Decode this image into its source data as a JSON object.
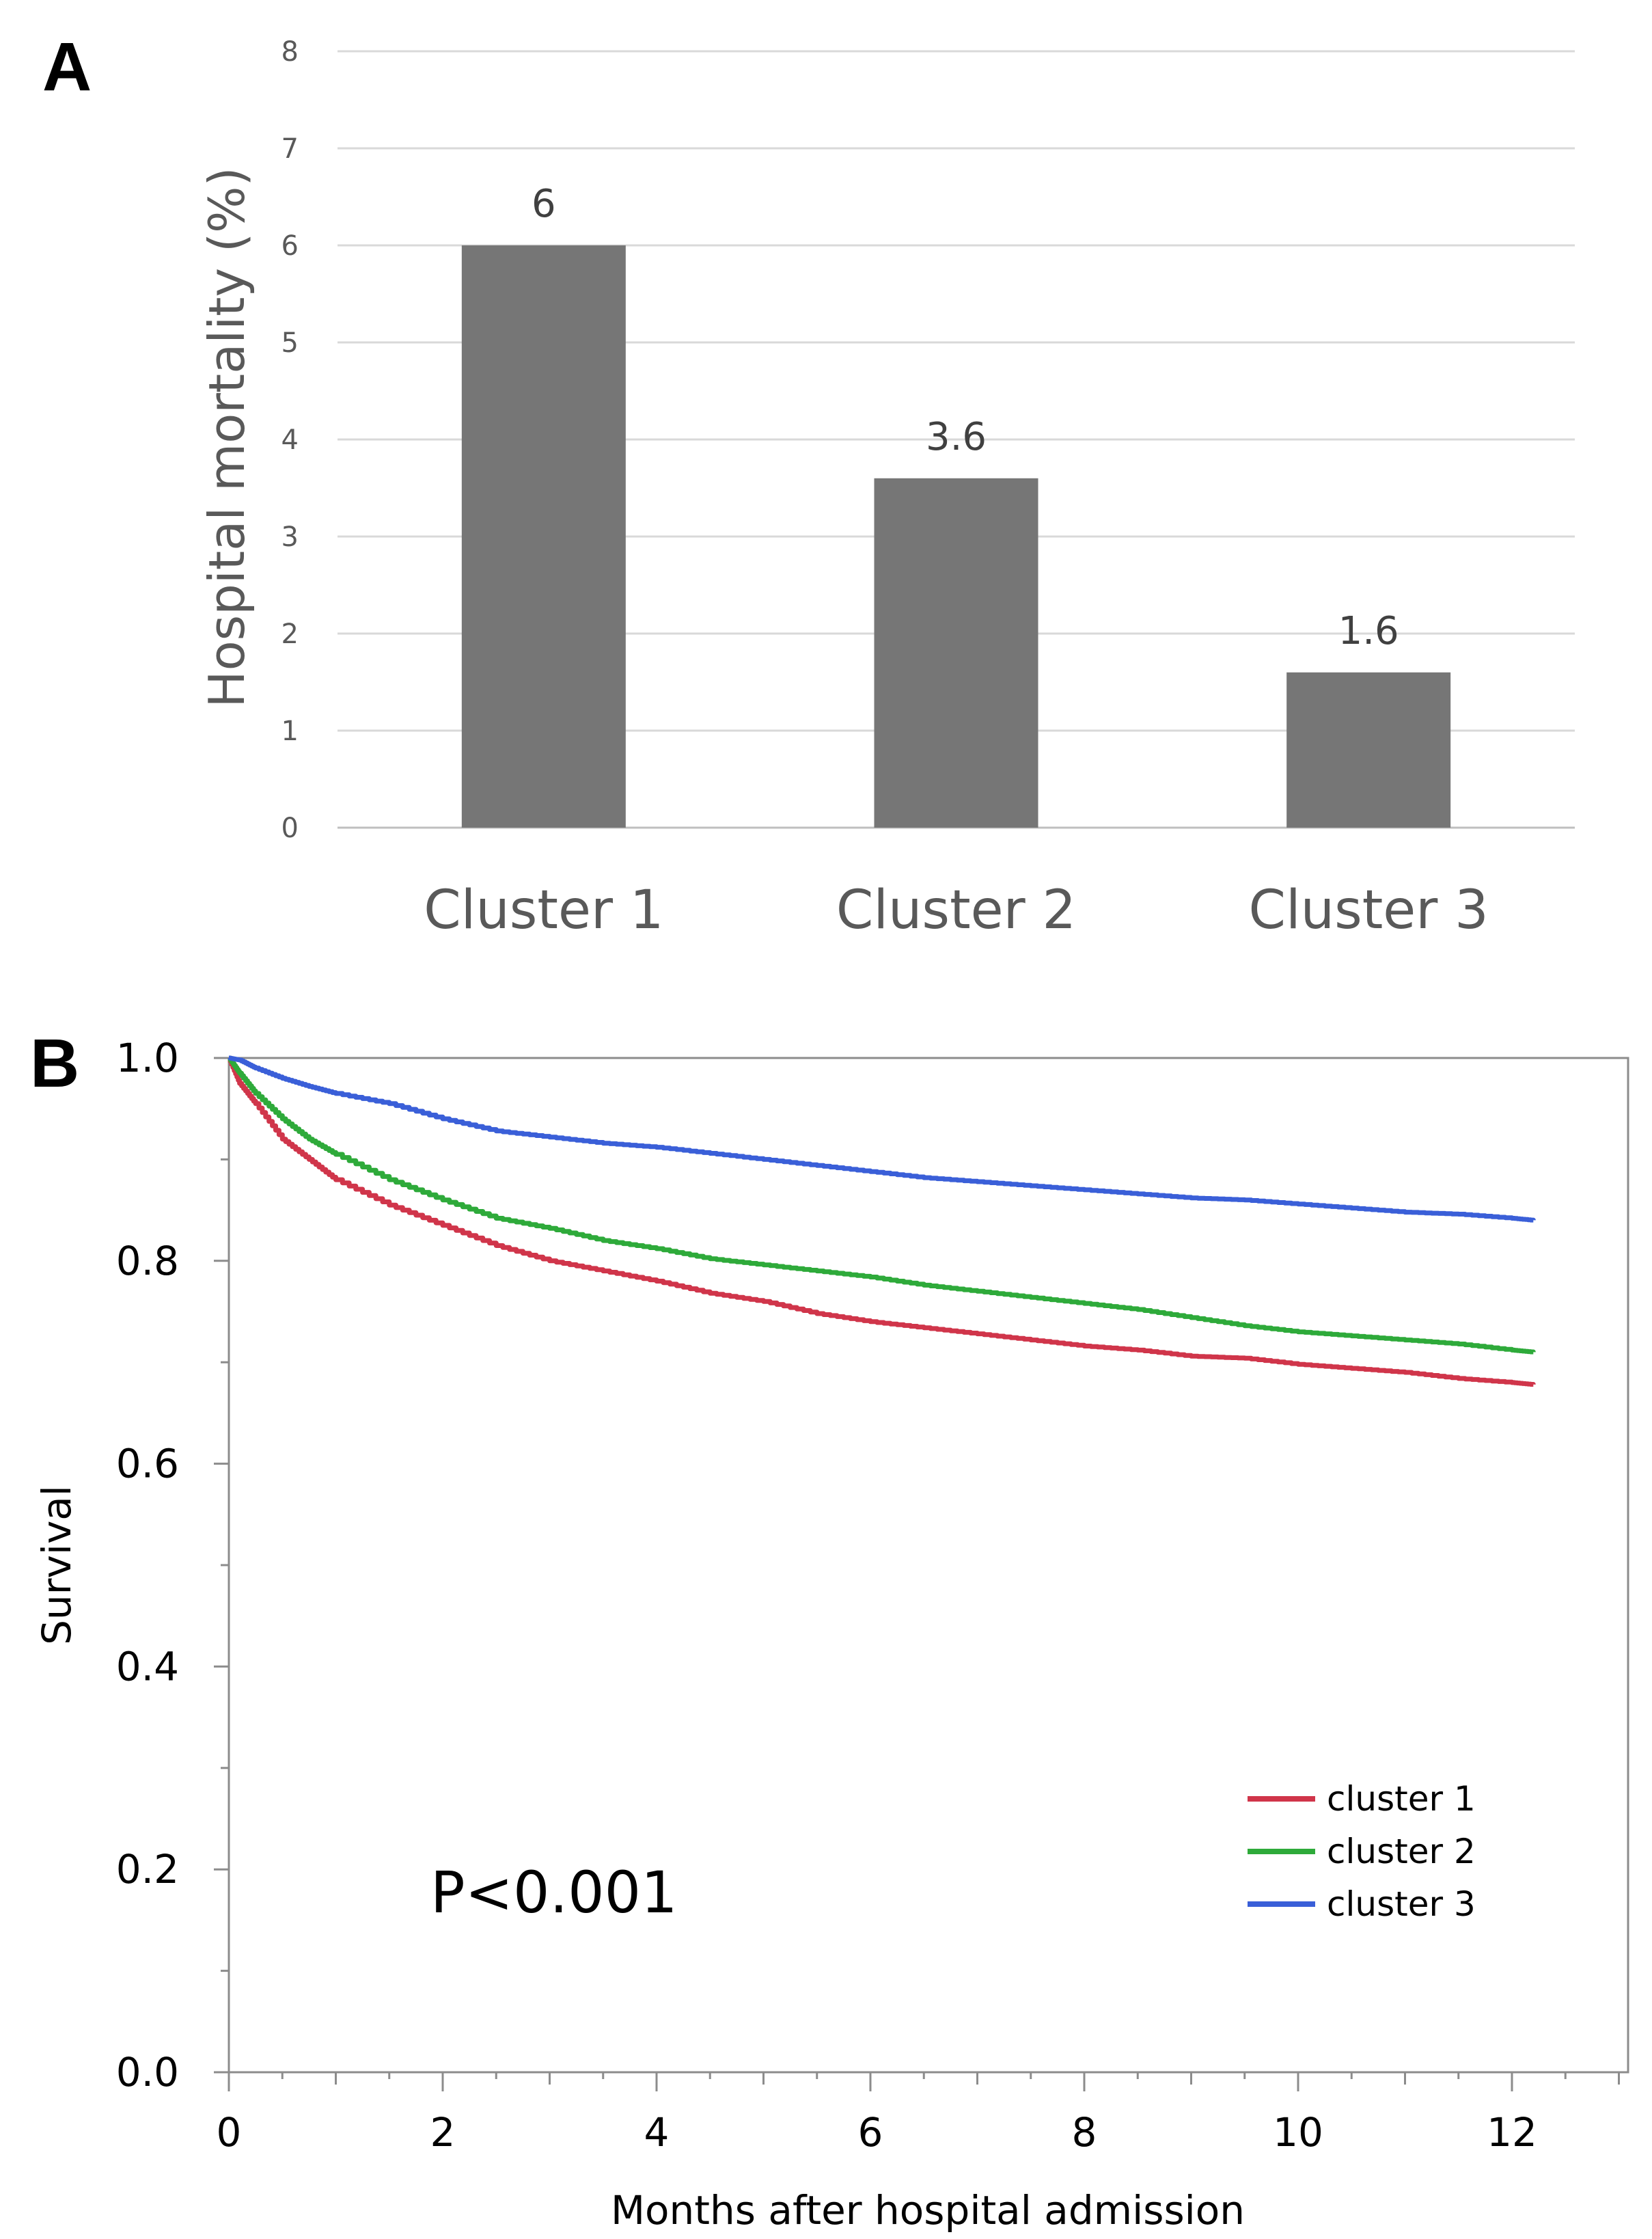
{
  "chart_data": [
    {
      "panel": "A",
      "type": "bar",
      "categories": [
        "Cluster 1",
        "Cluster 2",
        "Cluster 3"
      ],
      "values": [
        6,
        3.6,
        1.6
      ],
      "data_labels": [
        "6",
        "3.6",
        "1.6"
      ],
      "title": "",
      "xlabel": "",
      "ylabel": "Hospital mortality (%)",
      "ylim": [
        0,
        8
      ],
      "yticks": [
        0,
        1,
        2,
        3,
        4,
        5,
        6,
        7,
        8
      ],
      "grid": true,
      "bar_color": "#767676"
    },
    {
      "panel": "B",
      "type": "line",
      "title": "",
      "xlabel": "Months after hospital admission",
      "ylabel": "Survival",
      "xlim": [
        0,
        13
      ],
      "ylim": [
        0,
        1
      ],
      "xticks": [
        0,
        2,
        4,
        6,
        8,
        10,
        12
      ],
      "yticks": [
        "0.0",
        "0.2",
        "0.4",
        "0.6",
        "0.8",
        "1.0"
      ],
      "annotation": "P<0.001",
      "legend_position": "bottom-right",
      "series": [
        {
          "name": "cluster 1",
          "color": "#d0354a",
          "points": [
            [
              0,
              1.0
            ],
            [
              0.1,
              0.975
            ],
            [
              0.25,
              0.955
            ],
            [
              0.5,
              0.92
            ],
            [
              0.75,
              0.9
            ],
            [
              1,
              0.88
            ],
            [
              1.5,
              0.855
            ],
            [
              2,
              0.835
            ],
            [
              2.5,
              0.815
            ],
            [
              3,
              0.8
            ],
            [
              3.5,
              0.79
            ],
            [
              4,
              0.78
            ],
            [
              4.5,
              0.768
            ],
            [
              5,
              0.76
            ],
            [
              5.5,
              0.748
            ],
            [
              6,
              0.74
            ],
            [
              6.5,
              0.734
            ],
            [
              7,
              0.728
            ],
            [
              7.5,
              0.722
            ],
            [
              8,
              0.716
            ],
            [
              8.5,
              0.712
            ],
            [
              9,
              0.706
            ],
            [
              9.5,
              0.704
            ],
            [
              10,
              0.698
            ],
            [
              10.5,
              0.694
            ],
            [
              11,
              0.69
            ],
            [
              11.5,
              0.684
            ],
            [
              12,
              0.68
            ],
            [
              12.2,
              0.678
            ]
          ]
        },
        {
          "name": "cluster 2",
          "color": "#2eaa3a",
          "points": [
            [
              0,
              1.0
            ],
            [
              0.1,
              0.985
            ],
            [
              0.25,
              0.965
            ],
            [
              0.5,
              0.94
            ],
            [
              0.75,
              0.92
            ],
            [
              1,
              0.905
            ],
            [
              1.5,
              0.88
            ],
            [
              2,
              0.86
            ],
            [
              2.5,
              0.842
            ],
            [
              3,
              0.832
            ],
            [
              3.5,
              0.82
            ],
            [
              4,
              0.812
            ],
            [
              4.5,
              0.802
            ],
            [
              5,
              0.796
            ],
            [
              5.5,
              0.79
            ],
            [
              6,
              0.784
            ],
            [
              6.5,
              0.776
            ],
            [
              7,
              0.77
            ],
            [
              7.5,
              0.764
            ],
            [
              8,
              0.758
            ],
            [
              8.5,
              0.752
            ],
            [
              9,
              0.744
            ],
            [
              9.5,
              0.736
            ],
            [
              10,
              0.73
            ],
            [
              10.5,
              0.726
            ],
            [
              11,
              0.722
            ],
            [
              11.5,
              0.718
            ],
            [
              12,
              0.712
            ],
            [
              12.2,
              0.71
            ]
          ]
        },
        {
          "name": "cluster 3",
          "color": "#3a5fd8",
          "points": [
            [
              0,
              1.0
            ],
            [
              0.1,
              0.998
            ],
            [
              0.25,
              0.99
            ],
            [
              0.5,
              0.98
            ],
            [
              0.75,
              0.972
            ],
            [
              1,
              0.965
            ],
            [
              1.5,
              0.955
            ],
            [
              2,
              0.94
            ],
            [
              2.5,
              0.928
            ],
            [
              3,
              0.922
            ],
            [
              3.5,
              0.916
            ],
            [
              4,
              0.912
            ],
            [
              4.5,
              0.906
            ],
            [
              5,
              0.9
            ],
            [
              5.5,
              0.894
            ],
            [
              6,
              0.888
            ],
            [
              6.5,
              0.882
            ],
            [
              7,
              0.878
            ],
            [
              7.5,
              0.874
            ],
            [
              8,
              0.87
            ],
            [
              8.5,
              0.866
            ],
            [
              9,
              0.862
            ],
            [
              9.5,
              0.86
            ],
            [
              10,
              0.856
            ],
            [
              10.5,
              0.852
            ],
            [
              11,
              0.848
            ],
            [
              11.5,
              0.846
            ],
            [
              12,
              0.842
            ],
            [
              12.2,
              0.84
            ]
          ]
        }
      ]
    }
  ],
  "panels": {
    "a": "A",
    "b": "B"
  }
}
